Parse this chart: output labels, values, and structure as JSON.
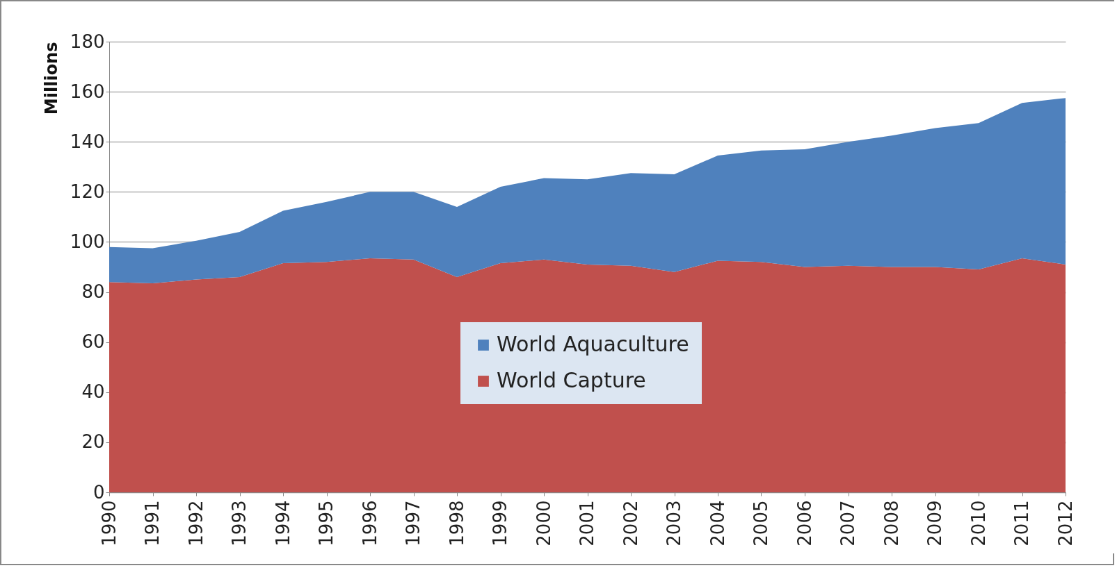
{
  "chart_data": {
    "type": "area",
    "ylabel": "Millions",
    "stacked": true,
    "categories": [
      "1990",
      "1991",
      "1992",
      "1993",
      "1994",
      "1995",
      "1996",
      "1997",
      "1998",
      "1999",
      "2000",
      "2001",
      "2002",
      "2003",
      "2004",
      "2005",
      "2006",
      "2007",
      "2008",
      "2009",
      "2010",
      "2011",
      "2012"
    ],
    "series": [
      {
        "name": "World Capture",
        "color": "#c0504d",
        "values": [
          84,
          83.5,
          85,
          86,
          91.5,
          92,
          93.5,
          93,
          86,
          91.5,
          93,
          91,
          90.5,
          88,
          92.5,
          92,
          90,
          90.5,
          90,
          90,
          89,
          93.5,
          91
        ]
      },
      {
        "name": "World Aquaculture",
        "color": "#4f81bd",
        "values": [
          14,
          14,
          15.5,
          18,
          21,
          24,
          26.5,
          27,
          28,
          30.5,
          32.5,
          34,
          37,
          39,
          42,
          44.5,
          47,
          49.5,
          52.5,
          55.5,
          58.5,
          62,
          66.5
        ]
      }
    ],
    "ylim": [
      0,
      180
    ],
    "yticks": [
      0,
      20,
      40,
      60,
      80,
      100,
      120,
      140,
      160,
      180
    ],
    "grid": "y",
    "legend": "bottom"
  }
}
